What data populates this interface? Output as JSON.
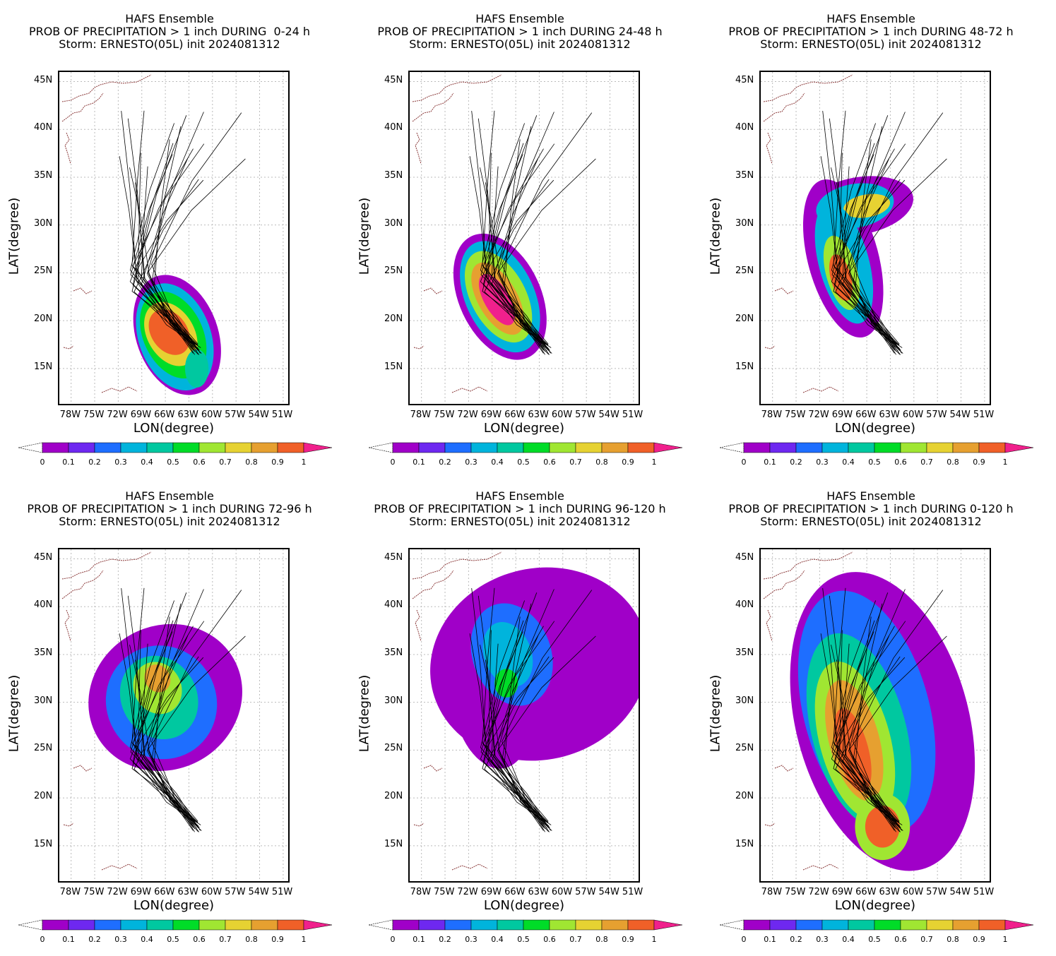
{
  "common": {
    "ensemble": "HAFS Ensemble",
    "storm_line": "Storm: ERNESTO(05L) init 2024081312",
    "xlabel": "LON(degree)",
    "ylabel": "LAT(degree)",
    "lon_ticks": [
      "78W",
      "75W",
      "72W",
      "69W",
      "66W",
      "63W",
      "60W",
      "57W",
      "54W",
      "51W"
    ],
    "lat_ticks": [
      "45N",
      "40N",
      "35N",
      "30N",
      "25N",
      "20N",
      "15N"
    ],
    "colorbar_labels": [
      "0",
      "0.1",
      "0.2",
      "0.3",
      "0.4",
      "0.5",
      "0.6",
      "0.7",
      "0.8",
      "0.9",
      "1"
    ],
    "colorbar_colors": [
      "#a000c8",
      "#6e28f0",
      "#1e6eff",
      "#00b4dc",
      "#00c8a0",
      "#00dc28",
      "#a0e632",
      "#e6d232",
      "#e6a030",
      "#f06028",
      "#f0208c"
    ]
  },
  "panels": [
    {
      "title": "PROB OF PRECIPITATION > 1 inch DURING  0-24 h",
      "period": "0-24 h"
    },
    {
      "title": "PROB OF PRECIPITATION > 1 inch DURING 24-48 h",
      "period": "24-48 h"
    },
    {
      "title": "PROB OF PRECIPITATION > 1 inch DURING 48-72 h",
      "period": "48-72 h"
    },
    {
      "title": "PROB OF PRECIPITATION > 1 inch DURING 72-96 h",
      "period": "72-96 h"
    },
    {
      "title": "PROB OF PRECIPITATION > 1 inch DURING 96-120 h",
      "period": "96-120 h"
    },
    {
      "title": "PROB OF PRECIPITATION > 1 inch DURING 0-120 h",
      "period": "0-120 h"
    }
  ]
}
